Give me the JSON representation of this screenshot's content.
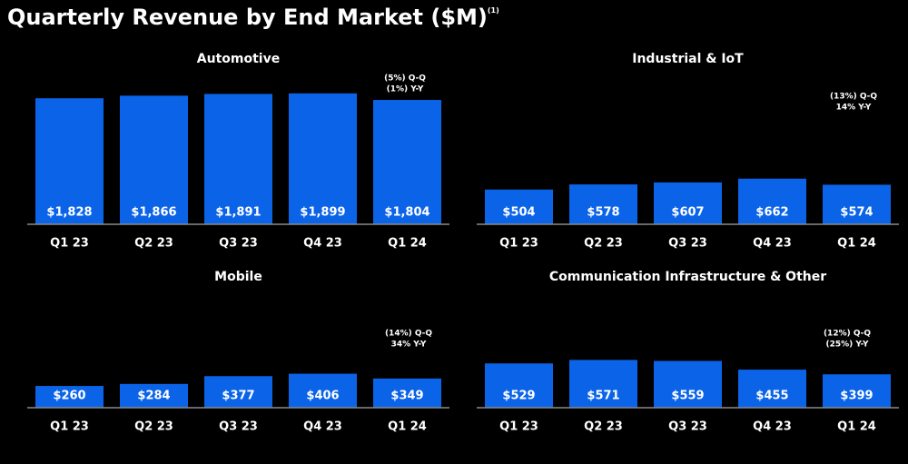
{
  "title": "Quarterly Revenue by End Market ($M)",
  "title_note": "(1)",
  "chart_data": [
    {
      "type": "bar",
      "title": "Automotive",
      "categories": [
        "Q1 23",
        "Q2 23",
        "Q3 23",
        "Q4 23",
        "Q1 24"
      ],
      "values": [
        1828,
        1866,
        1891,
        1899,
        1804
      ],
      "value_labels": [
        "$1,828",
        "$1,866",
        "$1,891",
        "$1,899",
        "$1,804"
      ],
      "color": "#0b64e8",
      "ylim": [
        0,
        2200
      ],
      "annotations": [
        "(5%) Q-Q",
        "(1%) Y-Y"
      ]
    },
    {
      "type": "bar",
      "title": "Industrial & IoT",
      "categories": [
        "Q1 23",
        "Q2 23",
        "Q3 23",
        "Q4 23",
        "Q1 24"
      ],
      "values": [
        504,
        578,
        607,
        662,
        574
      ],
      "value_labels": [
        "$504",
        "$578",
        "$607",
        "$662",
        "$574"
      ],
      "color": "#0b64e8",
      "ylim": [
        0,
        2200
      ],
      "annotations": [
        "(13%) Q-Q",
        "14% Y-Y"
      ]
    },
    {
      "type": "bar",
      "title": "Mobile",
      "categories": [
        "Q1 23",
        "Q2 23",
        "Q3 23",
        "Q4 23",
        "Q1 24"
      ],
      "values": [
        260,
        284,
        377,
        406,
        349
      ],
      "value_labels": [
        "$260",
        "$284",
        "$377",
        "$406",
        "$349"
      ],
      "color": "#0b64e8",
      "ylim": [
        0,
        1400
      ],
      "annotations": [
        "(14%) Q-Q",
        "34% Y-Y"
      ]
    },
    {
      "type": "bar",
      "title": "Communication Infrastructure & Other",
      "categories": [
        "Q1 23",
        "Q2 23",
        "Q3 23",
        "Q4 23",
        "Q1 24"
      ],
      "values": [
        529,
        571,
        559,
        455,
        399
      ],
      "value_labels": [
        "$529",
        "$571",
        "$559",
        "$455",
        "$399"
      ],
      "color": "#0b64e8",
      "ylim": [
        0,
        1400
      ],
      "annotations": [
        "(12%) Q-Q",
        "(25%) Y-Y"
      ]
    }
  ]
}
